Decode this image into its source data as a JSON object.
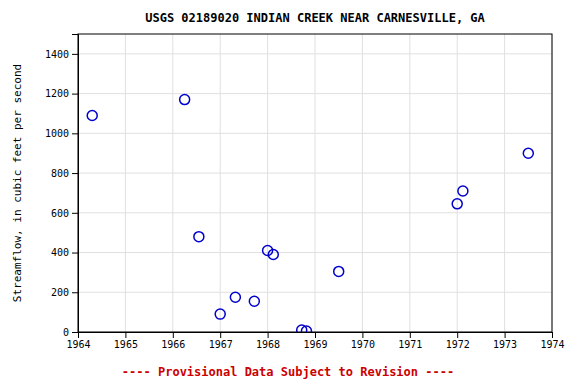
{
  "chart_data": {
    "type": "scatter",
    "title": "USGS 02189020 INDIAN CREEK NEAR CARNESVILLE, GA",
    "ylabel": "Streamflow, in cubic feet per second",
    "x": [
      1964.3,
      1966.25,
      1966.55,
      1967.0,
      1967.32,
      1967.72,
      1968.0,
      1968.12,
      1968.72,
      1968.82,
      1969.5,
      1972.0,
      1972.12,
      1973.5
    ],
    "values": [
      1090,
      1170,
      480,
      90,
      175,
      155,
      410,
      390,
      10,
      5,
      305,
      645,
      710,
      900
    ],
    "color": "#0000cc",
    "xlim": [
      1964,
      1974
    ],
    "xticks": [
      1964,
      1965,
      1966,
      1967,
      1968,
      1969,
      1970,
      1971,
      1972,
      1973,
      1974
    ],
    "ylim": [
      0,
      1500
    ],
    "yticks": [
      0,
      200,
      400,
      600,
      800,
      1000,
      1200,
      1400
    ],
    "grid": true,
    "annotations": [
      {
        "text": "---- Provisional Data Subject to Revision ----",
        "color": "#cc0000"
      }
    ]
  }
}
